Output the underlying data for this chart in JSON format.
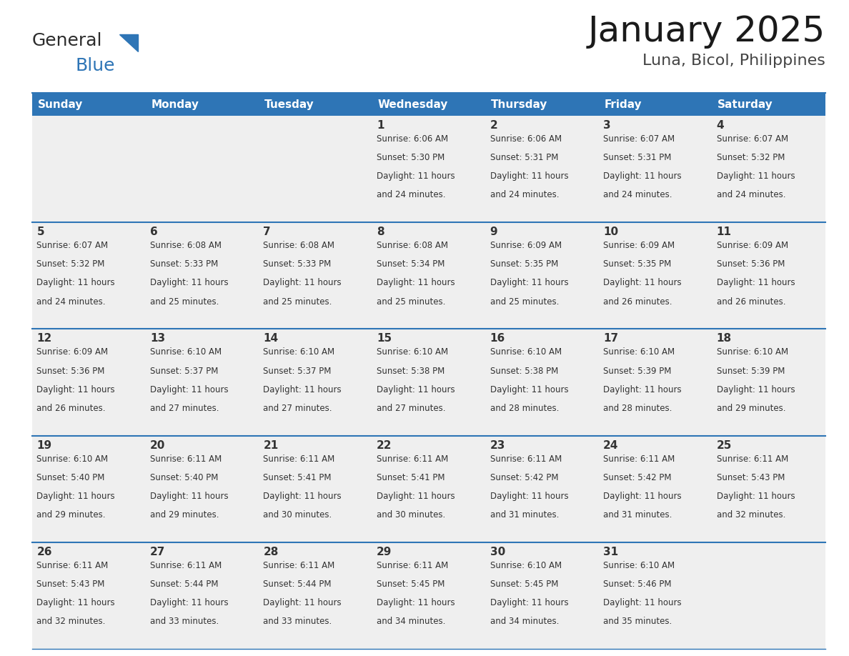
{
  "title": "January 2025",
  "subtitle": "Luna, Bicol, Philippines",
  "header_color": "#2E75B6",
  "header_text_color": "#FFFFFF",
  "cell_bg_color": "#EFEFEF",
  "day_names": [
    "Sunday",
    "Monday",
    "Tuesday",
    "Wednesday",
    "Thursday",
    "Friday",
    "Saturday"
  ],
  "line_color": "#2E75B6",
  "day_number_color": "#333333",
  "cell_text_color": "#333333",
  "calendar": [
    [
      null,
      null,
      null,
      {
        "day": 1,
        "sunrise": "6:06 AM",
        "sunset": "5:30 PM",
        "daylight": "11 hours and 24 minutes."
      },
      {
        "day": 2,
        "sunrise": "6:06 AM",
        "sunset": "5:31 PM",
        "daylight": "11 hours and 24 minutes."
      },
      {
        "day": 3,
        "sunrise": "6:07 AM",
        "sunset": "5:31 PM",
        "daylight": "11 hours and 24 minutes."
      },
      {
        "day": 4,
        "sunrise": "6:07 AM",
        "sunset": "5:32 PM",
        "daylight": "11 hours and 24 minutes."
      }
    ],
    [
      {
        "day": 5,
        "sunrise": "6:07 AM",
        "sunset": "5:32 PM",
        "daylight": "11 hours and 24 minutes."
      },
      {
        "day": 6,
        "sunrise": "6:08 AM",
        "sunset": "5:33 PM",
        "daylight": "11 hours and 25 minutes."
      },
      {
        "day": 7,
        "sunrise": "6:08 AM",
        "sunset": "5:33 PM",
        "daylight": "11 hours and 25 minutes."
      },
      {
        "day": 8,
        "sunrise": "6:08 AM",
        "sunset": "5:34 PM",
        "daylight": "11 hours and 25 minutes."
      },
      {
        "day": 9,
        "sunrise": "6:09 AM",
        "sunset": "5:35 PM",
        "daylight": "11 hours and 25 minutes."
      },
      {
        "day": 10,
        "sunrise": "6:09 AM",
        "sunset": "5:35 PM",
        "daylight": "11 hours and 26 minutes."
      },
      {
        "day": 11,
        "sunrise": "6:09 AM",
        "sunset": "5:36 PM",
        "daylight": "11 hours and 26 minutes."
      }
    ],
    [
      {
        "day": 12,
        "sunrise": "6:09 AM",
        "sunset": "5:36 PM",
        "daylight": "11 hours and 26 minutes."
      },
      {
        "day": 13,
        "sunrise": "6:10 AM",
        "sunset": "5:37 PM",
        "daylight": "11 hours and 27 minutes."
      },
      {
        "day": 14,
        "sunrise": "6:10 AM",
        "sunset": "5:37 PM",
        "daylight": "11 hours and 27 minutes."
      },
      {
        "day": 15,
        "sunrise": "6:10 AM",
        "sunset": "5:38 PM",
        "daylight": "11 hours and 27 minutes."
      },
      {
        "day": 16,
        "sunrise": "6:10 AM",
        "sunset": "5:38 PM",
        "daylight": "11 hours and 28 minutes."
      },
      {
        "day": 17,
        "sunrise": "6:10 AM",
        "sunset": "5:39 PM",
        "daylight": "11 hours and 28 minutes."
      },
      {
        "day": 18,
        "sunrise": "6:10 AM",
        "sunset": "5:39 PM",
        "daylight": "11 hours and 29 minutes."
      }
    ],
    [
      {
        "day": 19,
        "sunrise": "6:10 AM",
        "sunset": "5:40 PM",
        "daylight": "11 hours and 29 minutes."
      },
      {
        "day": 20,
        "sunrise": "6:11 AM",
        "sunset": "5:40 PM",
        "daylight": "11 hours and 29 minutes."
      },
      {
        "day": 21,
        "sunrise": "6:11 AM",
        "sunset": "5:41 PM",
        "daylight": "11 hours and 30 minutes."
      },
      {
        "day": 22,
        "sunrise": "6:11 AM",
        "sunset": "5:41 PM",
        "daylight": "11 hours and 30 minutes."
      },
      {
        "day": 23,
        "sunrise": "6:11 AM",
        "sunset": "5:42 PM",
        "daylight": "11 hours and 31 minutes."
      },
      {
        "day": 24,
        "sunrise": "6:11 AM",
        "sunset": "5:42 PM",
        "daylight": "11 hours and 31 minutes."
      },
      {
        "day": 25,
        "sunrise": "6:11 AM",
        "sunset": "5:43 PM",
        "daylight": "11 hours and 32 minutes."
      }
    ],
    [
      {
        "day": 26,
        "sunrise": "6:11 AM",
        "sunset": "5:43 PM",
        "daylight": "11 hours and 32 minutes."
      },
      {
        "day": 27,
        "sunrise": "6:11 AM",
        "sunset": "5:44 PM",
        "daylight": "11 hours and 33 minutes."
      },
      {
        "day": 28,
        "sunrise": "6:11 AM",
        "sunset": "5:44 PM",
        "daylight": "11 hours and 33 minutes."
      },
      {
        "day": 29,
        "sunrise": "6:11 AM",
        "sunset": "5:45 PM",
        "daylight": "11 hours and 34 minutes."
      },
      {
        "day": 30,
        "sunrise": "6:10 AM",
        "sunset": "5:45 PM",
        "daylight": "11 hours and 34 minutes."
      },
      {
        "day": 31,
        "sunrise": "6:10 AM",
        "sunset": "5:46 PM",
        "daylight": "11 hours and 35 minutes."
      },
      null
    ]
  ],
  "logo_general_color": "#2C2C2C",
  "logo_blue_color": "#2E75B6",
  "title_fontsize": 36,
  "subtitle_fontsize": 16,
  "header_fontsize": 11,
  "day_num_fontsize": 11,
  "cell_text_fontsize": 8.5
}
